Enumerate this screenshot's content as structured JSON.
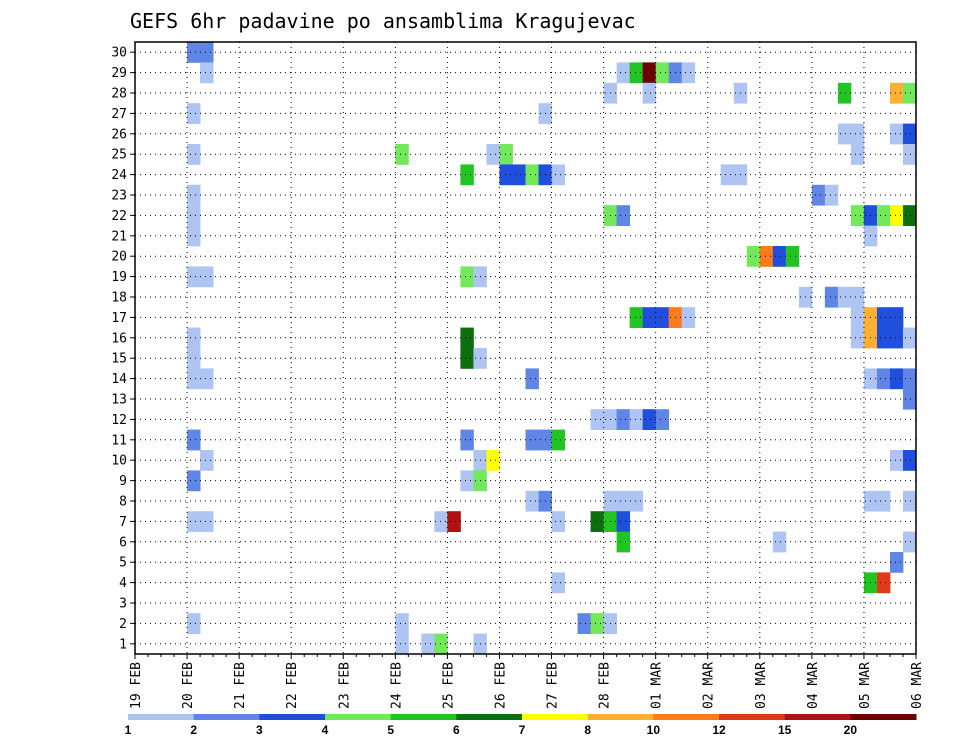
{
  "chart_data": {
    "type": "heatmap",
    "title": "GEFS 6hr padavine po ansamblima Kragujevac",
    "x_tick_labels": [
      "19 FEB",
      "20 FEB",
      "21 FEB",
      "22 FEB",
      "23 FEB",
      "24 FEB",
      "25 FEB",
      "26 FEB",
      "27 FEB",
      "28 FEB",
      "01 MAR",
      "02 MAR",
      "03 MAR",
      "04 MAR",
      "05 MAR",
      "06 MAR"
    ],
    "xlim_days": [
      0,
      15
    ],
    "y_tick_labels": [
      "1",
      "2",
      "3",
      "4",
      "5",
      "6",
      "7",
      "8",
      "9",
      "10",
      "11",
      "12",
      "13",
      "14",
      "15",
      "16",
      "17",
      "18",
      "19",
      "20",
      "21",
      "22",
      "23",
      "24",
      "25",
      "26",
      "27",
      "28",
      "29",
      "30"
    ],
    "ylim": [
      0.5,
      30.5
    ],
    "grid": "dotted",
    "colorbar": {
      "labels": [
        "1",
        "2",
        "3",
        "4",
        "5",
        "6",
        "7",
        "8",
        "10",
        "12",
        "15",
        "20"
      ],
      "colors": [
        "#aec4f2",
        "#5f85e6",
        "#1f4fdc",
        "#72e85a",
        "#22c422",
        "#0d6e0d",
        "#ffff00",
        "#ffb030",
        "#ff7a1a",
        "#e03a1a",
        "#b01212",
        "#6e0000"
      ]
    },
    "cells": [
      {
        "member": 30,
        "day": 1.0,
        "level": 2
      },
      {
        "member": 30,
        "day": 1.25,
        "level": 2
      },
      {
        "member": 29,
        "day": 1.25,
        "level": 1
      },
      {
        "member": 27,
        "day": 1.0,
        "level": 1
      },
      {
        "member": 25,
        "day": 1.0,
        "level": 1
      },
      {
        "member": 23,
        "day": 1.0,
        "level": 1
      },
      {
        "member": 22,
        "day": 1.0,
        "level": 1
      },
      {
        "member": 21,
        "day": 1.0,
        "level": 1
      },
      {
        "member": 19,
        "day": 1.0,
        "level": 1
      },
      {
        "member": 19,
        "day": 1.25,
        "level": 1
      },
      {
        "member": 16,
        "day": 1.0,
        "level": 1
      },
      {
        "member": 15,
        "day": 1.0,
        "level": 1
      },
      {
        "member": 14,
        "day": 1.0,
        "level": 1
      },
      {
        "member": 14,
        "day": 1.25,
        "level": 1
      },
      {
        "member": 11,
        "day": 1.0,
        "level": 2
      },
      {
        "member": 10,
        "day": 1.25,
        "level": 1
      },
      {
        "member": 9,
        "day": 1.0,
        "level": 2
      },
      {
        "member": 7,
        "day": 1.0,
        "level": 1
      },
      {
        "member": 7,
        "day": 1.25,
        "level": 1
      },
      {
        "member": 2,
        "day": 1.0,
        "level": 1
      },
      {
        "member": 25,
        "day": 5.0,
        "level": 4
      },
      {
        "member": 2,
        "day": 5.0,
        "level": 1
      },
      {
        "member": 1,
        "day": 5.0,
        "level": 1
      },
      {
        "member": 1,
        "day": 5.5,
        "level": 1
      },
      {
        "member": 1,
        "day": 5.75,
        "level": 4
      },
      {
        "member": 7,
        "day": 5.75,
        "level": 1
      },
      {
        "member": 7,
        "day": 6.0,
        "level": 11
      },
      {
        "member": 24,
        "day": 6.25,
        "level": 5
      },
      {
        "member": 19,
        "day": 6.25,
        "level": 4
      },
      {
        "member": 19,
        "day": 6.5,
        "level": 1
      },
      {
        "member": 16,
        "day": 6.25,
        "level": 6
      },
      {
        "member": 15,
        "day": 6.25,
        "level": 6
      },
      {
        "member": 15,
        "day": 6.5,
        "level": 1
      },
      {
        "member": 11,
        "day": 6.25,
        "level": 2
      },
      {
        "member": 10,
        "day": 6.5,
        "level": 1
      },
      {
        "member": 10,
        "day": 6.75,
        "level": 7
      },
      {
        "member": 9,
        "day": 6.25,
        "level": 1
      },
      {
        "member": 9,
        "day": 6.5,
        "level": 4
      },
      {
        "member": 1,
        "day": 6.5,
        "level": 1
      },
      {
        "member": 25,
        "day": 6.75,
        "level": 1
      },
      {
        "member": 25,
        "day": 7.0,
        "level": 4
      },
      {
        "member": 24,
        "day": 7.0,
        "level": 3
      },
      {
        "member": 24,
        "day": 7.25,
        "level": 3
      },
      {
        "member": 24,
        "day": 7.5,
        "level": 4
      },
      {
        "member": 24,
        "day": 7.75,
        "level": 3
      },
      {
        "member": 24,
        "day": 8.0,
        "level": 1
      },
      {
        "member": 27,
        "day": 7.75,
        "level": 1
      },
      {
        "member": 14,
        "day": 7.5,
        "level": 2
      },
      {
        "member": 11,
        "day": 7.5,
        "level": 2
      },
      {
        "member": 11,
        "day": 7.75,
        "level": 2
      },
      {
        "member": 11,
        "day": 8.0,
        "level": 5
      },
      {
        "member": 8,
        "day": 7.5,
        "level": 1
      },
      {
        "member": 8,
        "day": 7.75,
        "level": 2
      },
      {
        "member": 7,
        "day": 8.0,
        "level": 1
      },
      {
        "member": 4,
        "day": 8.0,
        "level": 1
      },
      {
        "member": 28,
        "day": 9.0,
        "level": 1
      },
      {
        "member": 22,
        "day": 9.0,
        "level": 4
      },
      {
        "member": 22,
        "day": 9.25,
        "level": 2
      },
      {
        "member": 12,
        "day": 8.75,
        "level": 1
      },
      {
        "member": 12,
        "day": 9.0,
        "level": 1
      },
      {
        "member": 12,
        "day": 9.25,
        "level": 2
      },
      {
        "member": 12,
        "day": 9.5,
        "level": 1
      },
      {
        "member": 8,
        "day": 9.0,
        "level": 1
      },
      {
        "member": 8,
        "day": 9.25,
        "level": 1
      },
      {
        "member": 8,
        "day": 9.5,
        "level": 1
      },
      {
        "member": 7,
        "day": 8.75,
        "level": 6
      },
      {
        "member": 7,
        "day": 9.0,
        "level": 5
      },
      {
        "member": 7,
        "day": 9.25,
        "level": 3
      },
      {
        "member": 6,
        "day": 9.25,
        "level": 5
      },
      {
        "member": 2,
        "day": 8.5,
        "level": 2
      },
      {
        "member": 2,
        "day": 8.75,
        "level": 4
      },
      {
        "member": 2,
        "day": 9.0,
        "level": 1
      },
      {
        "member": 29,
        "day": 9.25,
        "level": 1
      },
      {
        "member": 29,
        "day": 9.5,
        "level": 5
      },
      {
        "member": 29,
        "day": 9.75,
        "level": 12
      },
      {
        "member": 29,
        "day": 10.0,
        "level": 4
      },
      {
        "member": 29,
        "day": 10.25,
        "level": 2
      },
      {
        "member": 29,
        "day": 10.5,
        "level": 1
      },
      {
        "member": 28,
        "day": 9.75,
        "level": 1
      },
      {
        "member": 17,
        "day": 9.5,
        "level": 5
      },
      {
        "member": 17,
        "day": 9.75,
        "level": 3
      },
      {
        "member": 17,
        "day": 10.0,
        "level": 3
      },
      {
        "member": 17,
        "day": 10.25,
        "level": 9
      },
      {
        "member": 17,
        "day": 10.5,
        "level": 1
      },
      {
        "member": 12,
        "day": 9.75,
        "level": 3
      },
      {
        "member": 12,
        "day": 10.0,
        "level": 2
      },
      {
        "member": 28,
        "day": 11.5,
        "level": 1
      },
      {
        "member": 24,
        "day": 11.25,
        "level": 1
      },
      {
        "member": 24,
        "day": 11.5,
        "level": 1
      },
      {
        "member": 20,
        "day": 11.75,
        "level": 4
      },
      {
        "member": 20,
        "day": 12.0,
        "level": 9
      },
      {
        "member": 20,
        "day": 12.25,
        "level": 3
      },
      {
        "member": 20,
        "day": 12.5,
        "level": 5
      },
      {
        "member": 6,
        "day": 12.25,
        "level": 1
      },
      {
        "member": 18,
        "day": 12.75,
        "level": 1
      },
      {
        "member": 23,
        "day": 13.0,
        "level": 2
      },
      {
        "member": 23,
        "day": 13.25,
        "level": 1
      },
      {
        "member": 18,
        "day": 13.25,
        "level": 2
      },
      {
        "member": 18,
        "day": 13.5,
        "level": 1
      },
      {
        "member": 18,
        "day": 13.75,
        "level": 1
      },
      {
        "member": 28,
        "day": 13.5,
        "level": 5
      },
      {
        "member": 26,
        "day": 13.5,
        "level": 1
      },
      {
        "member": 26,
        "day": 13.75,
        "level": 1
      },
      {
        "member": 25,
        "day": 13.75,
        "level": 1
      },
      {
        "member": 22,
        "day": 13.75,
        "level": 4
      },
      {
        "member": 22,
        "day": 14.0,
        "level": 3
      },
      {
        "member": 22,
        "day": 14.25,
        "level": 4
      },
      {
        "member": 22,
        "day": 14.5,
        "level": 7
      },
      {
        "member": 22,
        "day": 14.75,
        "level": 6
      },
      {
        "member": 21,
        "day": 14.0,
        "level": 1
      },
      {
        "member": 17,
        "day": 13.75,
        "level": 1
      },
      {
        "member": 17,
        "day": 14.0,
        "level": 8
      },
      {
        "member": 17,
        "day": 14.25,
        "level": 3
      },
      {
        "member": 17,
        "day": 14.5,
        "level": 3
      },
      {
        "member": 16,
        "day": 13.75,
        "level": 1
      },
      {
        "member": 16,
        "day": 14.0,
        "level": 8
      },
      {
        "member": 16,
        "day": 14.25,
        "level": 3
      },
      {
        "member": 16,
        "day": 14.5,
        "level": 3
      },
      {
        "member": 16,
        "day": 14.75,
        "level": 1
      },
      {
        "member": 14,
        "day": 14.0,
        "level": 1
      },
      {
        "member": 14,
        "day": 14.25,
        "level": 2
      },
      {
        "member": 14,
        "day": 14.5,
        "level": 3
      },
      {
        "member": 14,
        "day": 14.75,
        "level": 2
      },
      {
        "member": 13,
        "day": 14.75,
        "level": 2
      },
      {
        "member": 10,
        "day": 14.5,
        "level": 1
      },
      {
        "member": 10,
        "day": 14.75,
        "level": 3
      },
      {
        "member": 8,
        "day": 14.0,
        "level": 1
      },
      {
        "member": 8,
        "day": 14.25,
        "level": 1
      },
      {
        "member": 8,
        "day": 14.75,
        "level": 1
      },
      {
        "member": 6,
        "day": 14.75,
        "level": 1
      },
      {
        "member": 5,
        "day": 14.5,
        "level": 2
      },
      {
        "member": 4,
        "day": 14.0,
        "level": 5
      },
      {
        "member": 4,
        "day": 14.25,
        "level": 10
      },
      {
        "member": 28,
        "day": 14.5,
        "level": 8
      },
      {
        "member": 28,
        "day": 14.75,
        "level": 4
      },
      {
        "member": 26,
        "day": 14.5,
        "level": 1
      },
      {
        "member": 26,
        "day": 14.75,
        "level": 3
      },
      {
        "member": 25,
        "day": 14.75,
        "level": 1
      }
    ]
  }
}
